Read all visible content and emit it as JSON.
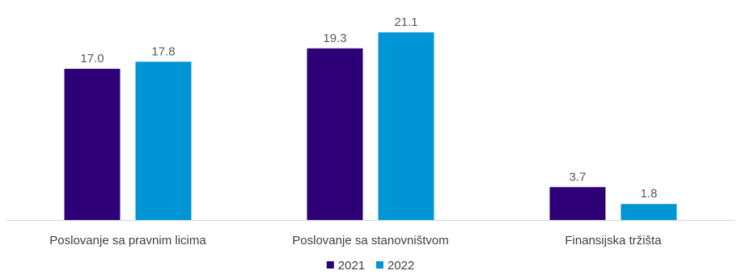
{
  "chart_data": {
    "type": "bar",
    "categories": [
      "Poslovanje sa pravnim licima",
      "Poslovanje sa stanovništvom",
      "Finansijska tržišta"
    ],
    "series": [
      {
        "name": "2021",
        "values": [
          17.0,
          19.3,
          3.7
        ],
        "labels": [
          "17.0",
          "19.3",
          "3.7"
        ],
        "color": "#2e0078"
      },
      {
        "name": "2022",
        "values": [
          17.8,
          21.1,
          1.8
        ],
        "labels": [
          "17.8",
          "21.1",
          "1.8"
        ],
        "color": "#0096d6"
      }
    ],
    "title": "",
    "xlabel": "",
    "ylabel": "",
    "ylim": [
      0,
      21.1
    ],
    "grid": false,
    "legend": "bottom-center"
  },
  "colors": {
    "axis": "#d9d9d9",
    "label_text": "#595959",
    "category_text": "#404040"
  }
}
